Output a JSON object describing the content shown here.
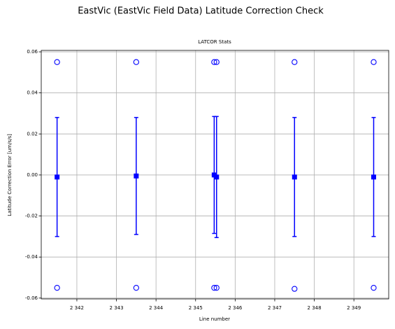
{
  "chart_data": {
    "type": "errorbar",
    "title": "EastVic (EastVic Field Data) Latitude Correction Check",
    "subtitle": "LATCOR Stats",
    "xlabel": "Line number",
    "ylabel": "Latitude Correction Error [um/s/s]",
    "x": [
      2341.5,
      2343.5,
      2345.47,
      2345.53,
      2347.5,
      2349.5
    ],
    "values": [
      -0.001,
      -0.0005,
      0.0,
      -0.001,
      -0.001,
      -0.001
    ],
    "errors": [
      0.029,
      0.0285,
      0.0285,
      0.0295,
      0.029,
      0.029
    ],
    "max_values": [
      0.055,
      0.055,
      0.055,
      0.055,
      0.055,
      0.055
    ],
    "min_values": [
      -0.055,
      -0.055,
      -0.055,
      -0.055,
      -0.0555,
      -0.055
    ],
    "color": "#0000ff",
    "xlim": [
      2341.1,
      2349.88
    ],
    "xticks": [
      {
        "value": 2342,
        "label": "2 342"
      },
      {
        "value": 2343,
        "label": "2 343"
      },
      {
        "value": 2344,
        "label": "2 344"
      },
      {
        "value": 2345,
        "label": "2 345"
      },
      {
        "value": 2346,
        "label": "2 346"
      },
      {
        "value": 2347,
        "label": "2 347"
      },
      {
        "value": 2348,
        "label": "2 348"
      },
      {
        "value": 2349,
        "label": "2 349"
      }
    ],
    "ylim": [
      -0.0604,
      0.0607
    ],
    "yticks": [
      -0.06,
      -0.04,
      -0.02,
      {
        "value": 0,
        "label": "0.00"
      },
      0.02,
      0.04,
      0.06
    ],
    "grid": true
  }
}
